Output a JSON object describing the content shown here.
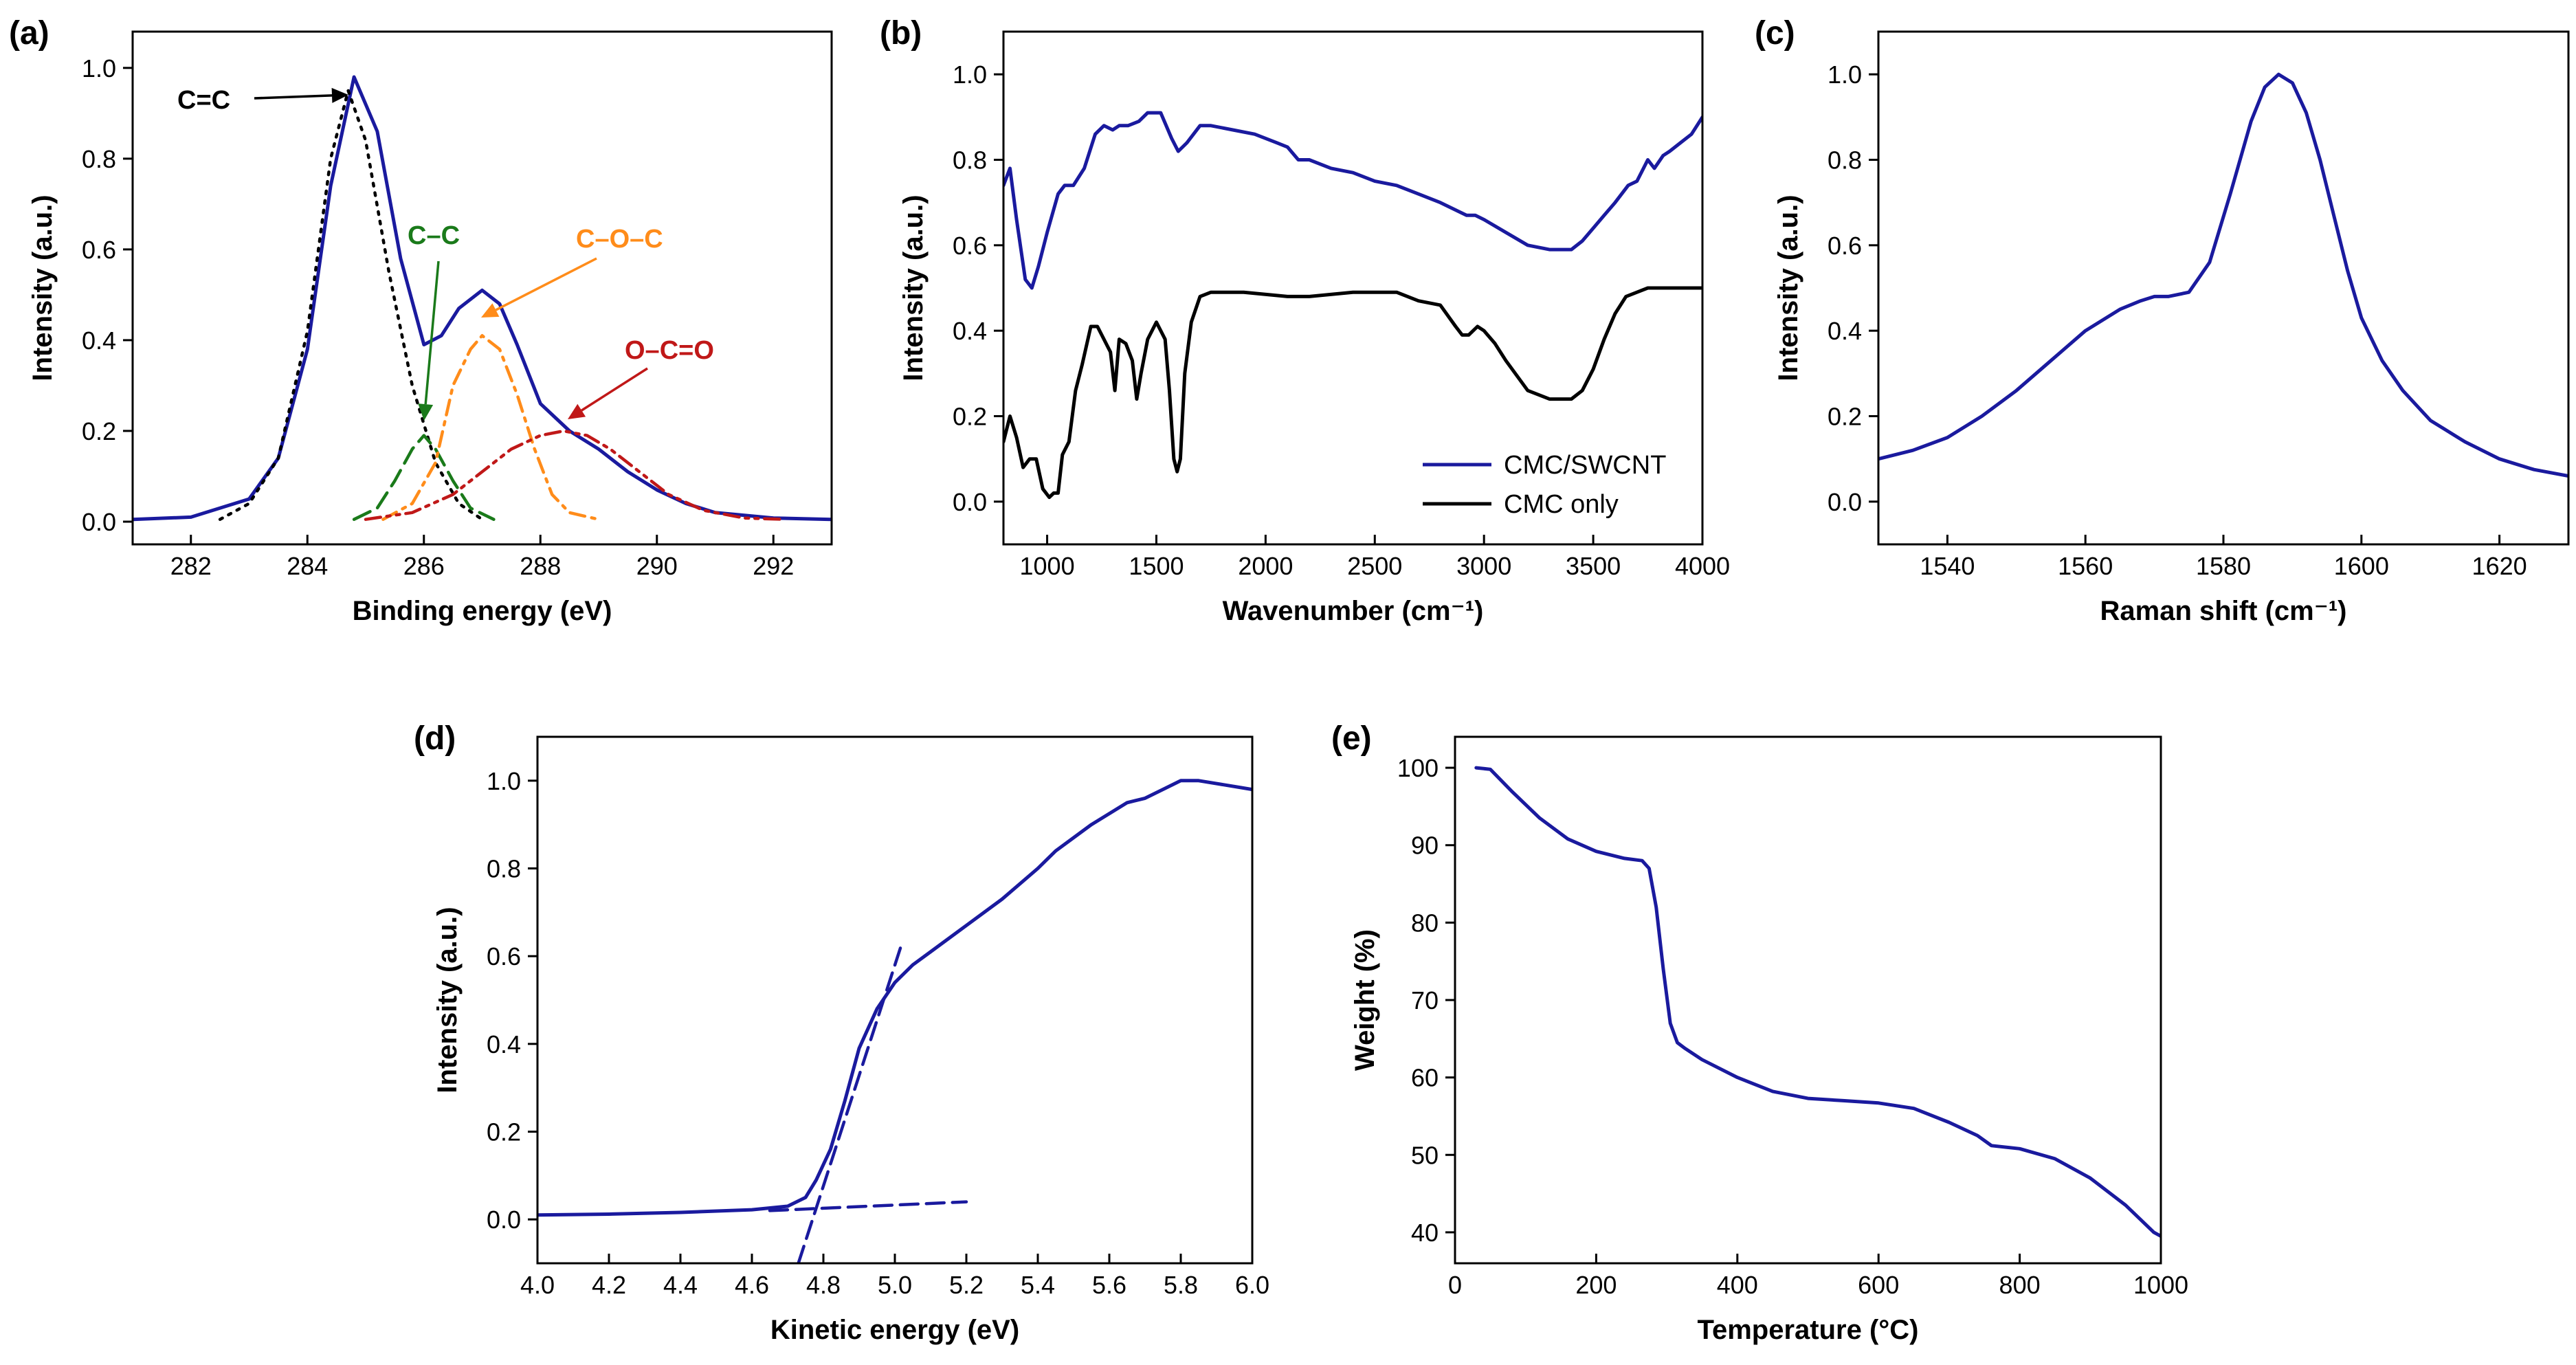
{
  "chart_data": [
    {
      "type": "line",
      "panel_label": "(a)",
      "xlabel": "Binding energy (eV)",
      "ylabel": "Intensity (a.u.)",
      "xlim": [
        281,
        293
      ],
      "ylim": [
        -0.05,
        1.08
      ],
      "xticks": [
        "282",
        "284",
        "286",
        "288",
        "290",
        "292"
      ],
      "yticks": [
        "0.0",
        "0.2",
        "0.4",
        "0.6",
        "0.8",
        "1.0"
      ],
      "grid": false,
      "series": [
        {
          "style": "solid",
          "color": "#1a1a9e",
          "x": [
            281,
            282,
            283,
            283.5,
            284,
            284.4,
            284.8,
            285.2,
            285.6,
            286,
            286.3,
            286.6,
            287,
            287.3,
            287.6,
            288,
            288.5,
            289,
            289.5,
            290,
            290.5,
            291,
            292,
            293
          ],
          "y": [
            0.005,
            0.01,
            0.05,
            0.14,
            0.38,
            0.74,
            0.98,
            0.86,
            0.58,
            0.39,
            0.41,
            0.47,
            0.51,
            0.48,
            0.39,
            0.26,
            0.2,
            0.16,
            0.11,
            0.07,
            0.04,
            0.02,
            0.008,
            0.005
          ]
        },
        {
          "label": "C=C",
          "style": "dotted",
          "color": "#000000",
          "x": [
            282.5,
            283,
            283.5,
            284,
            284.4,
            284.7,
            285,
            285.4,
            285.8,
            286.2,
            286.6,
            287
          ],
          "y": [
            0.005,
            0.04,
            0.14,
            0.42,
            0.8,
            0.95,
            0.84,
            0.55,
            0.3,
            0.13,
            0.04,
            0.005
          ]
        },
        {
          "label": "C–C",
          "style": "dashed",
          "color": "#1a7a1a",
          "x": [
            284.8,
            285.2,
            285.5,
            285.8,
            286,
            286.2,
            286.5,
            286.8,
            287.2
          ],
          "y": [
            0.005,
            0.03,
            0.09,
            0.16,
            0.19,
            0.16,
            0.09,
            0.03,
            0.005
          ]
        },
        {
          "label": "C–O–C",
          "style": "dashdot",
          "color": "#ff8c1a",
          "x": [
            285.3,
            285.8,
            286.2,
            286.5,
            286.8,
            287,
            287.3,
            287.6,
            287.9,
            288.2,
            288.5,
            289
          ],
          "y": [
            0.005,
            0.04,
            0.13,
            0.3,
            0.38,
            0.41,
            0.38,
            0.28,
            0.16,
            0.06,
            0.02,
            0.005
          ]
        },
        {
          "label": "O–C=O",
          "style": "dashdotdot",
          "color": "#c01818",
          "x": [
            285,
            285.8,
            286.5,
            287,
            287.5,
            288,
            288.4,
            288.8,
            289.2,
            289.7,
            290.2,
            290.8,
            291.5,
            292.2
          ],
          "y": [
            0.005,
            0.02,
            0.06,
            0.11,
            0.16,
            0.19,
            0.2,
            0.19,
            0.16,
            0.11,
            0.06,
            0.025,
            0.008,
            0.005
          ]
        }
      ],
      "annotations": [
        {
          "text": "C=C",
          "color": "#000000"
        },
        {
          "text": "C–C",
          "color": "#1a7a1a"
        },
        {
          "text": "C–O–C",
          "color": "#ff8c1a"
        },
        {
          "text": "O–C=O",
          "color": "#c01818"
        }
      ]
    },
    {
      "type": "line",
      "panel_label": "(b)",
      "xlabel": "Wavenumber (cm⁻¹)",
      "ylabel": "Intensity (a.u.)",
      "xlim": [
        800,
        4000
      ],
      "ylim": [
        -0.1,
        1.1
      ],
      "xticks": [
        "1000",
        "1500",
        "2000",
        "2500",
        "3000",
        "3500",
        "4000"
      ],
      "yticks": [
        "0.0",
        "0.2",
        "0.4",
        "0.6",
        "0.8",
        "1.0"
      ],
      "grid": false,
      "legend_position": "bottom-right",
      "series": [
        {
          "name": "CMC/SWCNT",
          "style": "solid",
          "color": "#1a1a9e",
          "x": [
            800,
            830,
            860,
            900,
            930,
            960,
            1000,
            1050,
            1080,
            1120,
            1170,
            1220,
            1260,
            1300,
            1330,
            1370,
            1420,
            1460,
            1520,
            1570,
            1600,
            1640,
            1700,
            1750,
            1850,
            1950,
            2050,
            2100,
            2150,
            2200,
            2300,
            2400,
            2500,
            2600,
            2700,
            2800,
            2880,
            2920,
            2960,
            3000,
            3100,
            3200,
            3300,
            3400,
            3450,
            3500,
            3550,
            3600,
            3660,
            3700,
            3720,
            3750,
            3780,
            3820,
            3850,
            3900,
            3950,
            4000
          ],
          "y": [
            0.74,
            0.78,
            0.66,
            0.52,
            0.5,
            0.55,
            0.63,
            0.72,
            0.74,
            0.74,
            0.78,
            0.86,
            0.88,
            0.87,
            0.88,
            0.88,
            0.89,
            0.91,
            0.91,
            0.85,
            0.82,
            0.84,
            0.88,
            0.88,
            0.87,
            0.86,
            0.84,
            0.83,
            0.8,
            0.8,
            0.78,
            0.77,
            0.75,
            0.74,
            0.72,
            0.7,
            0.68,
            0.67,
            0.67,
            0.66,
            0.63,
            0.6,
            0.59,
            0.59,
            0.61,
            0.64,
            0.67,
            0.7,
            0.74,
            0.75,
            0.77,
            0.8,
            0.78,
            0.81,
            0.82,
            0.84,
            0.86,
            0.9
          ]
        },
        {
          "name": "CMC only",
          "style": "solid",
          "color": "#000000",
          "x": [
            800,
            830,
            860,
            890,
            920,
            950,
            980,
            1010,
            1030,
            1050,
            1070,
            1100,
            1130,
            1160,
            1200,
            1230,
            1260,
            1290,
            1310,
            1330,
            1360,
            1390,
            1410,
            1430,
            1460,
            1500,
            1540,
            1560,
            1580,
            1595,
            1610,
            1630,
            1660,
            1700,
            1750,
            1900,
            2100,
            2200,
            2400,
            2600,
            2700,
            2800,
            2870,
            2900,
            2930,
            2970,
            3000,
            3050,
            3100,
            3200,
            3300,
            3400,
            3450,
            3500,
            3550,
            3600,
            3650,
            3700,
            3750,
            4000
          ],
          "y": [
            0.14,
            0.2,
            0.15,
            0.08,
            0.1,
            0.1,
            0.03,
            0.01,
            0.02,
            0.02,
            0.11,
            0.14,
            0.26,
            0.32,
            0.41,
            0.41,
            0.38,
            0.35,
            0.26,
            0.38,
            0.37,
            0.33,
            0.24,
            0.3,
            0.38,
            0.42,
            0.38,
            0.26,
            0.1,
            0.07,
            0.1,
            0.3,
            0.42,
            0.48,
            0.49,
            0.49,
            0.48,
            0.48,
            0.49,
            0.49,
            0.47,
            0.46,
            0.41,
            0.39,
            0.39,
            0.41,
            0.4,
            0.37,
            0.33,
            0.26,
            0.24,
            0.24,
            0.26,
            0.31,
            0.38,
            0.44,
            0.48,
            0.49,
            0.5,
            0.5
          ]
        }
      ]
    },
    {
      "type": "line",
      "panel_label": "(c)",
      "xlabel": "Raman shift (cm⁻¹)",
      "ylabel": "Intensity (a.u.)",
      "xlim": [
        1530,
        1630
      ],
      "ylim": [
        -0.1,
        1.1
      ],
      "xticks": [
        "1540",
        "1560",
        "1580",
        "1600",
        "1620"
      ],
      "yticks": [
        "0.0",
        "0.2",
        "0.4",
        "0.6",
        "0.8",
        "1.0"
      ],
      "grid": false,
      "series": [
        {
          "style": "solid",
          "color": "#1a1a9e",
          "x": [
            1530,
            1535,
            1540,
            1545,
            1550,
            1555,
            1560,
            1565,
            1568,
            1570,
            1572,
            1575,
            1578,
            1581,
            1584,
            1586,
            1588,
            1590,
            1592,
            1594,
            1596,
            1598,
            1600,
            1603,
            1606,
            1610,
            1615,
            1620,
            1625,
            1630
          ],
          "y": [
            0.1,
            0.12,
            0.15,
            0.2,
            0.26,
            0.33,
            0.4,
            0.45,
            0.47,
            0.48,
            0.48,
            0.49,
            0.56,
            0.72,
            0.89,
            0.97,
            1.0,
            0.98,
            0.91,
            0.8,
            0.67,
            0.54,
            0.43,
            0.33,
            0.26,
            0.19,
            0.14,
            0.1,
            0.075,
            0.06
          ]
        }
      ]
    },
    {
      "type": "line",
      "panel_label": "(d)",
      "xlabel": "Kinetic energy (eV)",
      "ylabel": "Intensity (a.u.)",
      "xlim": [
        4.0,
        6.0
      ],
      "ylim": [
        -0.1,
        1.1
      ],
      "xticks": [
        "4.0",
        "4.2",
        "4.4",
        "4.6",
        "4.8",
        "5.0",
        "5.2",
        "5.4",
        "5.6",
        "5.8",
        "6.0"
      ],
      "yticks": [
        "0.0",
        "0.2",
        "0.4",
        "0.6",
        "0.8",
        "1.0"
      ],
      "grid": false,
      "series": [
        {
          "style": "solid",
          "color": "#1a1a9e",
          "x": [
            4.0,
            4.2,
            4.4,
            4.6,
            4.7,
            4.75,
            4.78,
            4.82,
            4.86,
            4.9,
            4.95,
            5.0,
            5.05,
            5.1,
            5.2,
            5.3,
            5.4,
            5.45,
            5.55,
            5.65,
            5.7,
            5.8,
            5.85,
            6.0
          ],
          "y": [
            0.01,
            0.012,
            0.016,
            0.022,
            0.03,
            0.05,
            0.09,
            0.16,
            0.27,
            0.39,
            0.48,
            0.54,
            0.58,
            0.61,
            0.67,
            0.73,
            0.8,
            0.84,
            0.9,
            0.95,
            0.96,
            1.0,
            1.0,
            0.98
          ]
        },
        {
          "style": "dashed",
          "color": "#1a1a9e",
          "x": [
            4.65,
            5.2
          ],
          "y": [
            0.02,
            0.04
          ]
        },
        {
          "style": "dashed",
          "color": "#1a1a9e",
          "x": [
            4.73,
            5.02
          ],
          "y": [
            -0.1,
            0.63
          ]
        }
      ]
    },
    {
      "type": "line",
      "panel_label": "(e)",
      "xlabel": "Temperature (°C)",
      "ylabel": "Weight (%)",
      "xlim": [
        0,
        1000
      ],
      "ylim": [
        36,
        104
      ],
      "xticks": [
        "0",
        "200",
        "400",
        "600",
        "800",
        "1000"
      ],
      "yticks": [
        "40",
        "50",
        "60",
        "70",
        "80",
        "90",
        "100"
      ],
      "grid": false,
      "series": [
        {
          "style": "solid",
          "color": "#1a1a9e",
          "x": [
            30,
            50,
            80,
            120,
            160,
            200,
            240,
            265,
            275,
            285,
            295,
            305,
            315,
            325,
            350,
            400,
            450,
            500,
            550,
            600,
            650,
            700,
            740,
            760,
            800,
            850,
            900,
            950,
            990,
            1000
          ],
          "y": [
            100,
            99.8,
            97,
            93.5,
            90.8,
            89.2,
            88.3,
            88,
            87,
            82,
            74,
            67,
            64.5,
            63.8,
            62.3,
            60,
            58.2,
            57.3,
            57,
            56.7,
            56,
            54.2,
            52.5,
            51.2,
            50.8,
            49.5,
            47,
            43.5,
            40,
            39.5
          ]
        }
      ]
    }
  ]
}
